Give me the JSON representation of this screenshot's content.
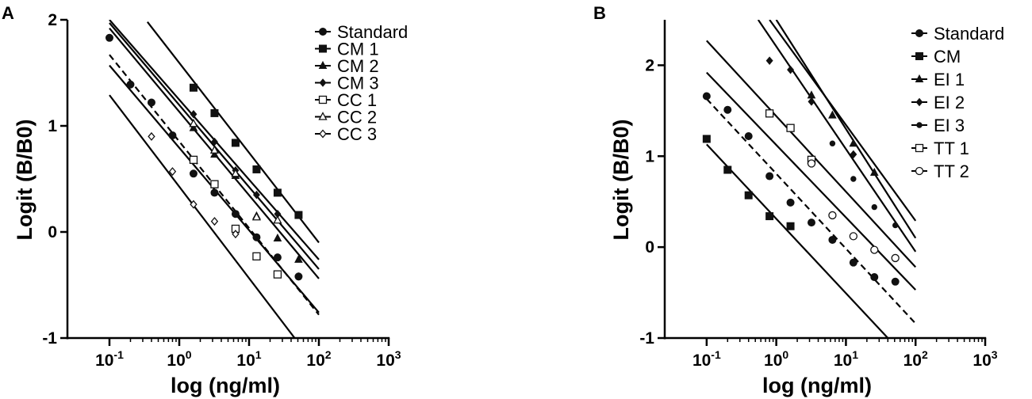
{
  "chart_data": [
    {
      "type": "scatter",
      "panel": "A",
      "xlabel": "log (ng/ml)",
      "ylabel": "Logit (B/B0)",
      "xscale": "log",
      "xlim": [
        0.025,
        1000
      ],
      "ylim": [
        -1,
        2
      ],
      "xticks": [
        {
          "base": "10",
          "exp": "-1",
          "value": 0.1
        },
        {
          "base": "10",
          "exp": "0",
          "value": 1
        },
        {
          "base": "10",
          "exp": "1",
          "value": 10
        },
        {
          "base": "10",
          "exp": "2",
          "value": 100
        },
        {
          "base": "10",
          "exp": "3",
          "value": 1000
        }
      ],
      "yticks": [
        "2",
        "1",
        "0",
        "-1"
      ],
      "yticks_values": [
        2,
        1,
        0,
        -1
      ],
      "legend_position": "top-right",
      "series": [
        {
          "name": "Standard",
          "marker": "circle-filled",
          "dashed": true,
          "points": [
            [
              0.1,
              1.83
            ],
            [
              0.2,
              1.39
            ],
            [
              0.4,
              1.22
            ],
            [
              0.8,
              0.91
            ],
            [
              1.6,
              0.55
            ],
            [
              3.2,
              0.37
            ],
            [
              6.4,
              0.17
            ],
            [
              12.8,
              -0.05
            ],
            [
              25.6,
              -0.24
            ],
            [
              51.2,
              -0.42
            ]
          ],
          "fit": [
            [
              0.1,
              1.67
            ],
            [
              100,
              -0.78
            ]
          ]
        },
        {
          "name": "CM 1",
          "marker": "square-filled",
          "dashed": false,
          "points": [
            [
              1.6,
              1.36
            ],
            [
              3.2,
              1.12
            ],
            [
              6.4,
              0.84
            ],
            [
              12.8,
              0.59
            ],
            [
              25.6,
              0.37
            ],
            [
              51.2,
              0.16
            ]
          ],
          "fit": [
            [
              0.35,
              1.98
            ],
            [
              100,
              -0.1
            ]
          ]
        },
        {
          "name": "CM 2",
          "marker": "triangle-filled",
          "dashed": false,
          "points": [
            [
              1.6,
              0.98
            ],
            [
              3.2,
              0.73
            ],
            [
              6.4,
              0.53
            ],
            [
              12.8,
              0.15
            ],
            [
              25.6,
              -0.06
            ],
            [
              51.2,
              -0.26
            ]
          ],
          "fit": [
            [
              0.1,
              1.97
            ],
            [
              100,
              -0.35
            ]
          ]
        },
        {
          "name": "CM 3",
          "marker": "diamond-filled",
          "dashed": false,
          "points": [
            [
              1.6,
              1.11
            ],
            [
              3.2,
              0.85
            ],
            [
              6.4,
              0.58
            ],
            [
              12.8,
              0.35
            ],
            [
              25.6,
              0.17
            ],
            [
              51.2,
              -0.42
            ]
          ],
          "fit": [
            [
              0.1,
              2.0
            ],
            [
              100,
              -0.26
            ]
          ]
        },
        {
          "name": "CC 1",
          "marker": "square-open",
          "dashed": false,
          "points": [
            [
              1.6,
              0.68
            ],
            [
              3.2,
              0.45
            ],
            [
              6.4,
              0.03
            ],
            [
              12.8,
              -0.23
            ],
            [
              25.6,
              -0.4
            ]
          ],
          "fit": [
            [
              0.1,
              1.57
            ],
            [
              100,
              -0.76
            ]
          ]
        },
        {
          "name": "CC 2",
          "marker": "triangle-open",
          "dashed": false,
          "points": [
            [
              1.6,
              1.02
            ],
            [
              3.2,
              0.77
            ],
            [
              6.4,
              0.55
            ],
            [
              12.8,
              0.14
            ],
            [
              25.6,
              0.11
            ]
          ],
          "fit": [
            [
              0.1,
              1.92
            ],
            [
              100,
              -0.44
            ]
          ]
        },
        {
          "name": "CC 3",
          "marker": "diamond-open",
          "dashed": false,
          "points": [
            [
              0.4,
              0.9
            ],
            [
              0.8,
              0.57
            ],
            [
              1.6,
              0.26
            ],
            [
              3.2,
              0.1
            ],
            [
              6.4,
              -0.02
            ]
          ],
          "fit": [
            [
              0.1,
              1.29
            ],
            [
              45,
              -1.0
            ]
          ]
        }
      ]
    },
    {
      "type": "scatter",
      "panel": "B",
      "xlabel": "log (ng/ml)",
      "ylabel": "Logit (B/B0)",
      "xscale": "log",
      "xlim": [
        0.025,
        1000
      ],
      "ylim": [
        -1,
        2.5
      ],
      "xticks": [
        {
          "base": "10",
          "exp": "-1",
          "value": 0.1
        },
        {
          "base": "10",
          "exp": "0",
          "value": 1
        },
        {
          "base": "10",
          "exp": "1",
          "value": 10
        },
        {
          "base": "10",
          "exp": "2",
          "value": 100
        },
        {
          "base": "10",
          "exp": "3",
          "value": 1000
        }
      ],
      "yticks": [
        "2",
        "1",
        "0",
        "-1"
      ],
      "yticks_values": [
        2,
        1,
        0,
        -1
      ],
      "legend_position": "top-right",
      "series": [
        {
          "name": "Standard",
          "marker": "circle-filled",
          "dashed": true,
          "points": [
            [
              0.1,
              1.66
            ],
            [
              0.2,
              1.51
            ],
            [
              0.4,
              1.22
            ],
            [
              0.8,
              0.78
            ],
            [
              1.6,
              0.49
            ],
            [
              3.2,
              0.27
            ],
            [
              6.4,
              0.08
            ],
            [
              12.8,
              -0.17
            ],
            [
              25.6,
              -0.33
            ],
            [
              51.2,
              -0.38
            ]
          ],
          "fit": [
            [
              0.1,
              1.63
            ],
            [
              100,
              -0.84
            ]
          ]
        },
        {
          "name": "CM",
          "marker": "square-filled",
          "dashed": false,
          "points": [
            [
              0.1,
              1.19
            ],
            [
              0.2,
              0.85
            ],
            [
              0.4,
              0.57
            ],
            [
              0.8,
              0.34
            ],
            [
              1.6,
              0.23
            ]
          ],
          "fit": [
            [
              0.1,
              1.13
            ],
            [
              40,
              -1.0
            ]
          ]
        },
        {
          "name": "EI 1",
          "marker": "triangle-filled",
          "dashed": false,
          "points": [
            [
              3.2,
              1.67
            ],
            [
              6.4,
              1.45
            ],
            [
              12.8,
              1.14
            ],
            [
              25.6,
              0.82
            ]
          ],
          "fit": [
            [
              1.0,
              2.5
            ],
            [
              100,
              0.1
            ]
          ]
        },
        {
          "name": "EI 2",
          "marker": "diamond-filled",
          "dashed": false,
          "points": [
            [
              0.8,
              2.05
            ],
            [
              1.6,
              1.95
            ],
            [
              3.2,
              1.6
            ],
            [
              12.8,
              1.02
            ]
          ],
          "fit": [
            [
              0.8,
              2.5
            ],
            [
              100,
              0.29
            ]
          ]
        },
        {
          "name": "EI 3",
          "marker": "dot-filled",
          "dashed": false,
          "points": [
            [
              6.4,
              1.14
            ],
            [
              12.8,
              0.75
            ],
            [
              25.6,
              0.44
            ],
            [
              51.2,
              0.24
            ]
          ],
          "fit": [
            [
              0.55,
              2.5
            ],
            [
              100,
              -0.05
            ]
          ]
        },
        {
          "name": "TT 1",
          "marker": "square-open",
          "dashed": false,
          "points": [
            [
              0.8,
              1.47
            ],
            [
              1.6,
              1.31
            ],
            [
              3.2,
              0.96
            ]
          ],
          "fit": [
            [
              0.1,
              1.92
            ],
            [
              100,
              -0.47
            ]
          ]
        },
        {
          "name": "TT 2",
          "marker": "circle-open",
          "dashed": false,
          "points": [
            [
              3.2,
              0.92
            ],
            [
              6.4,
              0.35
            ],
            [
              12.8,
              0.12
            ],
            [
              25.6,
              -0.03
            ],
            [
              51.2,
              -0.12
            ]
          ],
          "fit": [
            [
              0.1,
              2.27
            ],
            [
              100,
              -0.22
            ]
          ]
        }
      ]
    }
  ]
}
